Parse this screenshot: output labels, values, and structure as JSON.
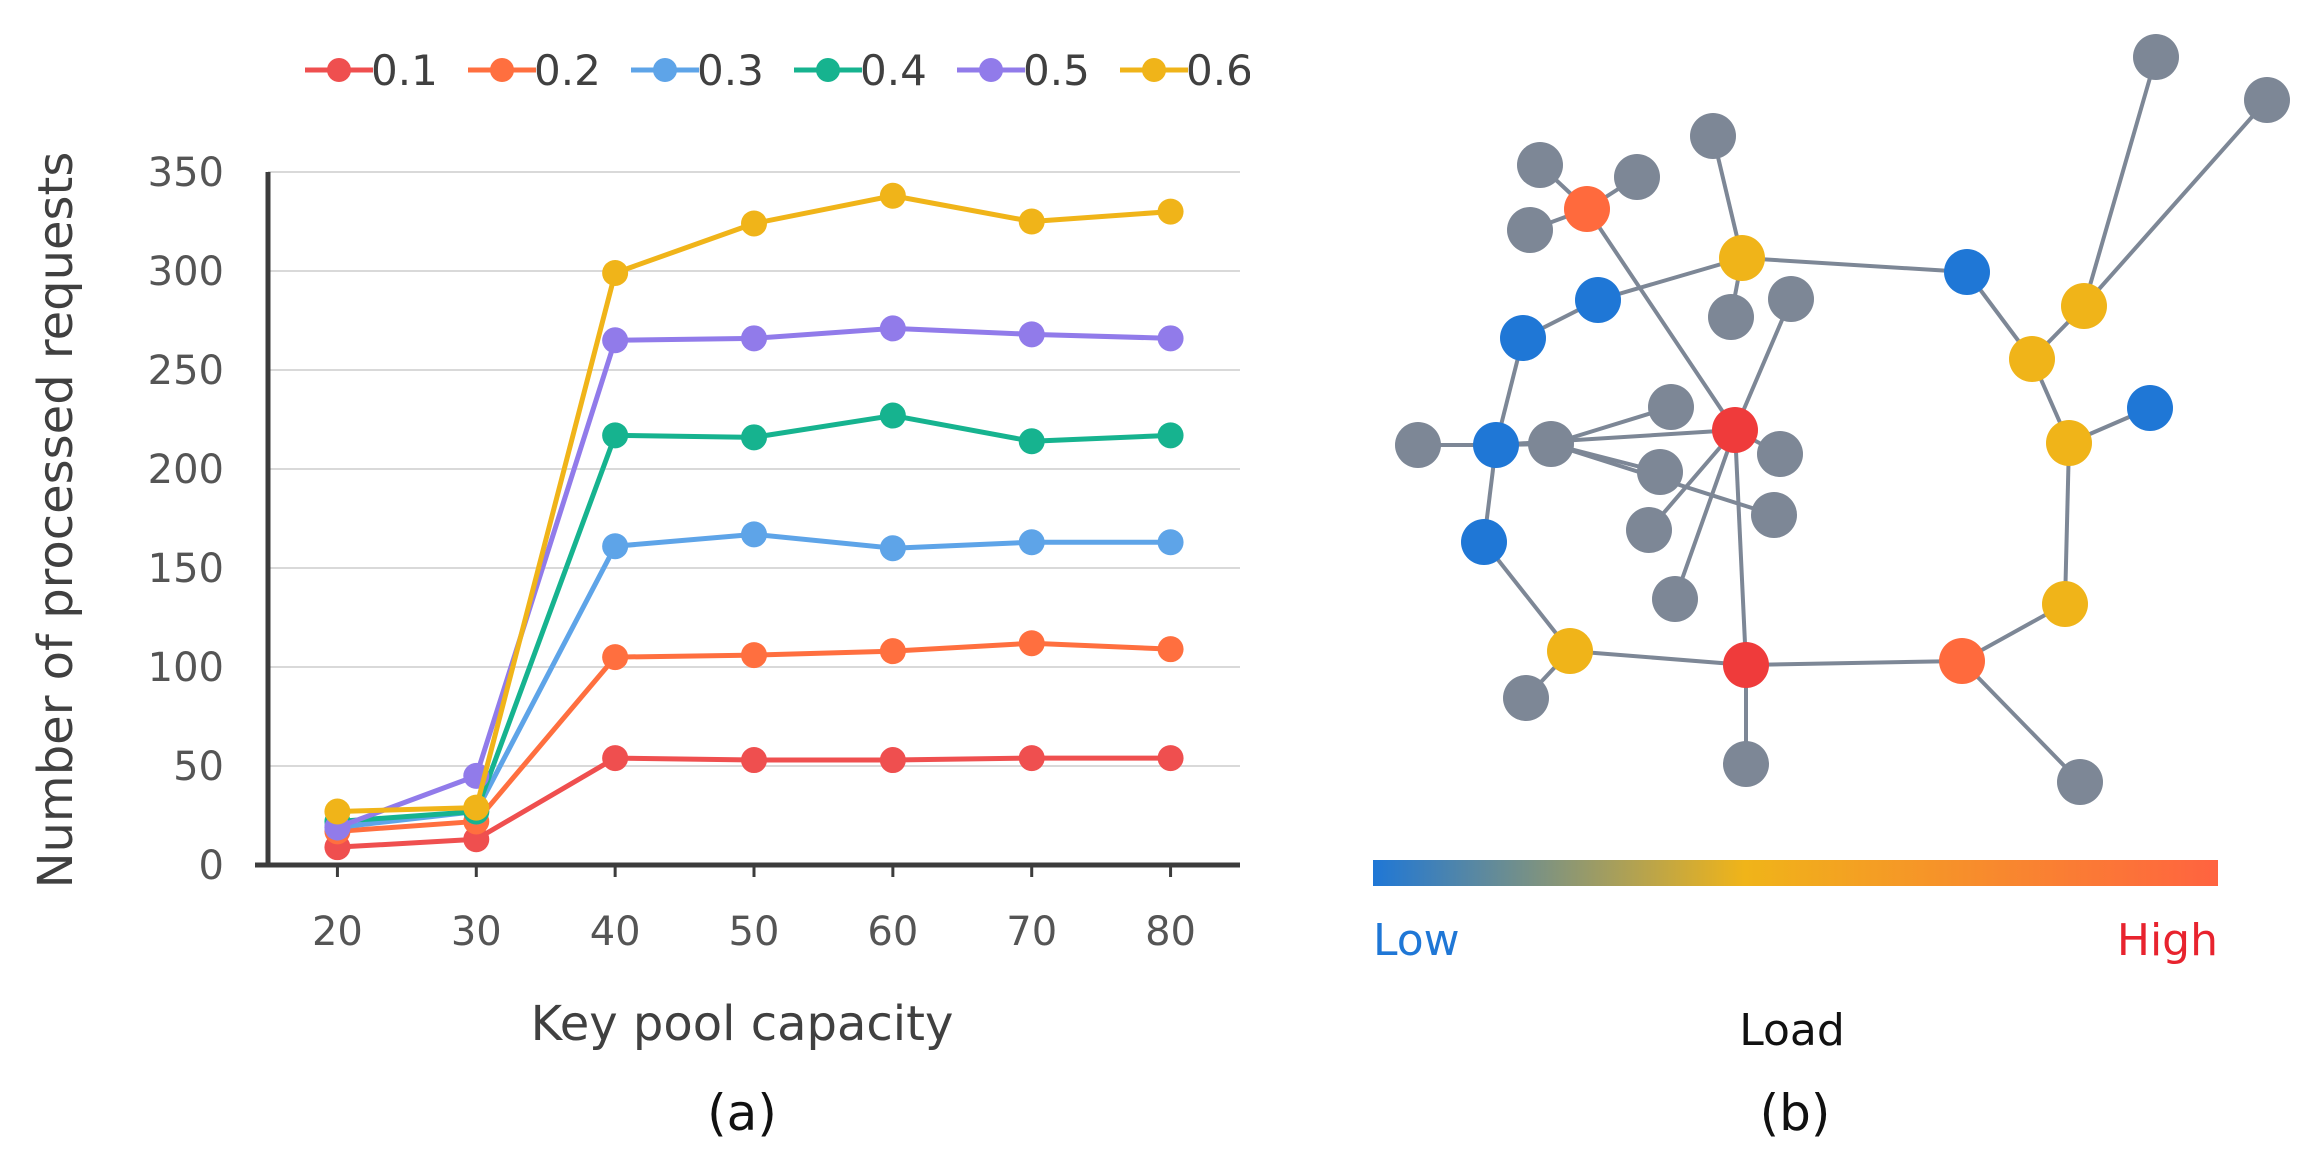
{
  "chart_data": [
    {
      "type": "line",
      "xlabel": "Key pool capacity",
      "ylabel": "Number of processed requests",
      "x": [
        20,
        30,
        40,
        50,
        60,
        70,
        80
      ],
      "x_ticks": [
        "20",
        "30",
        "40",
        "50",
        "60",
        "70",
        "80"
      ],
      "y_ticks": [
        "0",
        "50",
        "100",
        "150",
        "200",
        "250",
        "300",
        "350"
      ],
      "xlim": [
        15,
        85
      ],
      "ylim": [
        0,
        350
      ],
      "grid": true,
      "legend_position": "top",
      "caption": "(a)",
      "series": [
        {
          "name": "0.1",
          "color": "#ef4f4f",
          "values": [
            9,
            13,
            54,
            53,
            53,
            54,
            54
          ]
        },
        {
          "name": "0.2",
          "color": "#ff6f3f",
          "values": [
            17,
            22,
            105,
            106,
            108,
            112,
            109
          ]
        },
        {
          "name": "0.3",
          "color": "#5ea4e8",
          "values": [
            19,
            27,
            161,
            167,
            160,
            163,
            163
          ]
        },
        {
          "name": "0.4",
          "color": "#16b38f",
          "values": [
            22,
            27,
            217,
            216,
            227,
            214,
            217
          ]
        },
        {
          "name": "0.5",
          "color": "#917bea",
          "values": [
            19,
            45,
            265,
            266,
            271,
            268,
            266
          ]
        },
        {
          "name": "0.6",
          "color": "#f0b419",
          "values": [
            27,
            29,
            299,
            324,
            338,
            325,
            330
          ]
        }
      ]
    },
    {
      "type": "network",
      "caption": "(b)",
      "colorbar": {
        "title": "Load",
        "low_label": "Low",
        "high_label": "High",
        "colors": [
          "#1f77d6",
          "#f0b419",
          "#ff6340"
        ],
        "low_color": "#1f77d6",
        "high_color": "#e8232e"
      },
      "node_colors": {
        "gray": "#7d8796",
        "blue": "#1f77d6",
        "yellow": "#f0b419",
        "orange": "#ff6a3d",
        "red": "#ef3b3b"
      }
    }
  ]
}
